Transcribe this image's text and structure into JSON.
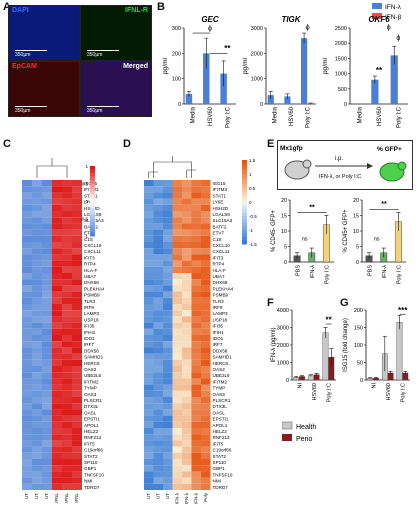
{
  "panels": {
    "A": {
      "letter": "A",
      "images": [
        {
          "label": "DAPI",
          "color": "#2f6cff",
          "scale": "350µm"
        },
        {
          "label": "IFNL-R",
          "color": "#33d14a",
          "scale": "350µm"
        },
        {
          "label": "EpCAM",
          "color": "#ff2a2a",
          "scale": "350µm"
        },
        {
          "label": "Merged",
          "color": "#ffffff",
          "scale": "350µm"
        }
      ]
    },
    "B": {
      "letter": "B"
    },
    "C": {
      "letter": "C"
    },
    "D": {
      "letter": "D"
    },
    "E": {
      "letter": "E",
      "schematic": {
        "mouse_label": "Mx1gfp",
        "route": "i.p.",
        "treatments": "IFN-λ, or Poly I:C",
        "readout": "% GFP+"
      }
    },
    "F": {
      "letter": "F"
    },
    "G": {
      "letter": "G"
    }
  },
  "legend_top": {
    "items": [
      {
        "name": "IFN-λ",
        "color": "#4a7fd6"
      },
      {
        "name": "IFN-β",
        "color": "#e05050"
      }
    ]
  },
  "heatmap_genes": [
    "ISG15",
    "IFITM3",
    "STAT1",
    "LY6E",
    "HSH2D",
    "LGALS9",
    "SLC15A3",
    "BATF2",
    "ETV7",
    "C1S",
    "CXCL10",
    "CXCL11",
    "IFIT3",
    "RTP4",
    "HLA-F",
    "UBA7",
    "DHX58",
    "PLEKHA4",
    "PSMB9",
    "TLR3",
    "IRF9",
    "LAMP3",
    "USP18",
    "IFI35",
    "IFIH1",
    "IDO1",
    "IRF7",
    "DDX58",
    "SAMHD1",
    "HERC6",
    "OAS2",
    "UBE2L6",
    "IFITM2",
    "TYMP",
    "OAS3",
    "PLSCR1",
    "DTX3L",
    "OASL",
    "EPSTI1",
    "APOL1",
    "HELZ2",
    "RNF213",
    "IFIT5",
    "C19orf66",
    "STAT2",
    "SP110",
    "GBP1",
    "TNFSF10",
    "NMI",
    "TDRD7"
  ],
  "chart_data": [
    {
      "type": "bar",
      "panel": "B",
      "title": "GEC",
      "categories": [
        "Media",
        "HSV60",
        "Poly I:C"
      ],
      "ylabel": "pg/ml",
      "ylim": [
        0,
        300
      ],
      "yticks": [
        0,
        100,
        200,
        300
      ],
      "series": [
        {
          "name": "IFN-λ",
          "values": [
            40,
            200,
            120
          ],
          "errors": [
            10,
            60,
            50
          ]
        },
        {
          "name": "IFN-β",
          "values": [
            0,
            0,
            0
          ],
          "errors": [
            0,
            0,
            0
          ]
        }
      ],
      "annotations": [
        "ϕ",
        "**"
      ]
    },
    {
      "type": "bar",
      "panel": "B",
      "title": "TIGK",
      "categories": [
        "Media",
        "HSV60",
        "Poly I:C"
      ],
      "ylabel": "pg/ml",
      "ylim": [
        0,
        3000
      ],
      "yticks": [
        0,
        1000,
        2000,
        3000
      ],
      "series": [
        {
          "name": "IFN-λ",
          "values": [
            350,
            300,
            2600
          ],
          "errors": [
            150,
            100,
            200
          ]
        },
        {
          "name": "IFN-β",
          "values": [
            0,
            0,
            30
          ],
          "errors": [
            0,
            0,
            10
          ]
        }
      ],
      "annotations": [
        "ϕ"
      ]
    },
    {
      "type": "bar",
      "panel": "B",
      "title": "OKF6",
      "categories": [
        "Media",
        "HSV60",
        "Poly I:C"
      ],
      "ylabel": "pg/ml",
      "ylim": [
        0,
        2500
      ],
      "yticks": [
        0,
        500,
        1000,
        1500,
        2000,
        2500
      ],
      "series": [
        {
          "name": "IFN-λ",
          "values": [
            0,
            800,
            1600
          ],
          "errors": [
            0,
            120,
            300
          ]
        },
        {
          "name": "IFN-β",
          "values": [
            0,
            0,
            0
          ],
          "errors": [
            0,
            0,
            0
          ]
        }
      ],
      "annotations": [
        "ϕ",
        "**",
        "ϕ"
      ]
    },
    {
      "type": "bar",
      "panel": "E",
      "categories": [
        "PBS",
        "IFN-λ",
        "Poly I:C"
      ],
      "ylabel": "% CD45- GFP+",
      "ylim": [
        0,
        20
      ],
      "yticks": [
        0,
        5,
        10,
        15,
        20
      ],
      "series": [
        {
          "name": "",
          "values": [
            2,
            3,
            12
          ],
          "errors": [
            1,
            1.5,
            3
          ]
        }
      ],
      "colors": [
        "#555555",
        "#6aaa6a",
        "#f4d27a"
      ],
      "annotations": [
        "ns",
        "**"
      ]
    },
    {
      "type": "bar",
      "panel": "E",
      "categories": [
        "PBS",
        "IFN-λ",
        "Poly I:C"
      ],
      "ylabel": "% CD45+ GFP+",
      "ylim": [
        0,
        20
      ],
      "yticks": [
        0,
        5,
        10,
        15,
        20
      ],
      "series": [
        {
          "name": "",
          "values": [
            2,
            3,
            13
          ],
          "errors": [
            1,
            1.5,
            3
          ]
        }
      ],
      "colors": [
        "#555555",
        "#6aaa6a",
        "#f4d27a"
      ],
      "annotations": [
        "ns",
        "**"
      ]
    },
    {
      "type": "bar",
      "panel": "F",
      "categories": [
        "NI",
        "HSV60",
        "Poly I:C"
      ],
      "ylabel": "IFN-λ (pg/ml)",
      "ylim": [
        0,
        4000
      ],
      "yticks": [
        0,
        1000,
        2000,
        3000,
        4000
      ],
      "series": [
        {
          "name": "Health",
          "values": [
            150,
            250,
            2700
          ],
          "errors": [
            50,
            50,
            300
          ]
        },
        {
          "name": "Perio",
          "values": [
            200,
            300,
            1300
          ],
          "errors": [
            50,
            80,
            500
          ]
        }
      ],
      "annotations": [
        "**"
      ]
    },
    {
      "type": "bar",
      "panel": "G",
      "categories": [
        "NI",
        "HSV60",
        "Poly I:C"
      ],
      "ylabel": "ISG15 (fold change)",
      "ylim": [
        0,
        200
      ],
      "yticks": [
        0,
        50,
        100,
        150,
        200
      ],
      "series": [
        {
          "name": "Health",
          "values": [
            5,
            75,
            165
          ],
          "errors": [
            2,
            50,
            20
          ]
        },
        {
          "name": "Perio",
          "values": [
            5,
            20,
            20
          ],
          "errors": [
            2,
            5,
            5
          ]
        }
      ],
      "annotations": [
        "***"
      ]
    }
  ],
  "legend_fg": {
    "items": [
      {
        "name": "Health",
        "color": "#c8c8c8"
      },
      {
        "name": "Perio",
        "color": "#8b1a1a"
      }
    ]
  },
  "colorbar_C": {
    "ticks": [
      "1",
      "0.5",
      "0",
      "-0.5",
      "-1"
    ]
  },
  "colorbar_D": {
    "ticks": [
      "1.5",
      "1",
      "0.5",
      "0",
      "-0.5",
      "-1",
      "-1.5"
    ]
  },
  "heatmap_C_cols": [
    "UT",
    "UT",
    "UT",
    "IFNL",
    "IFNL",
    "IFNL"
  ],
  "heatmap_D_cols": [
    "UT",
    "UT",
    "UT",
    "IFN-λ",
    "IFN-λ",
    "IFN-λ",
    "Poly"
  ]
}
